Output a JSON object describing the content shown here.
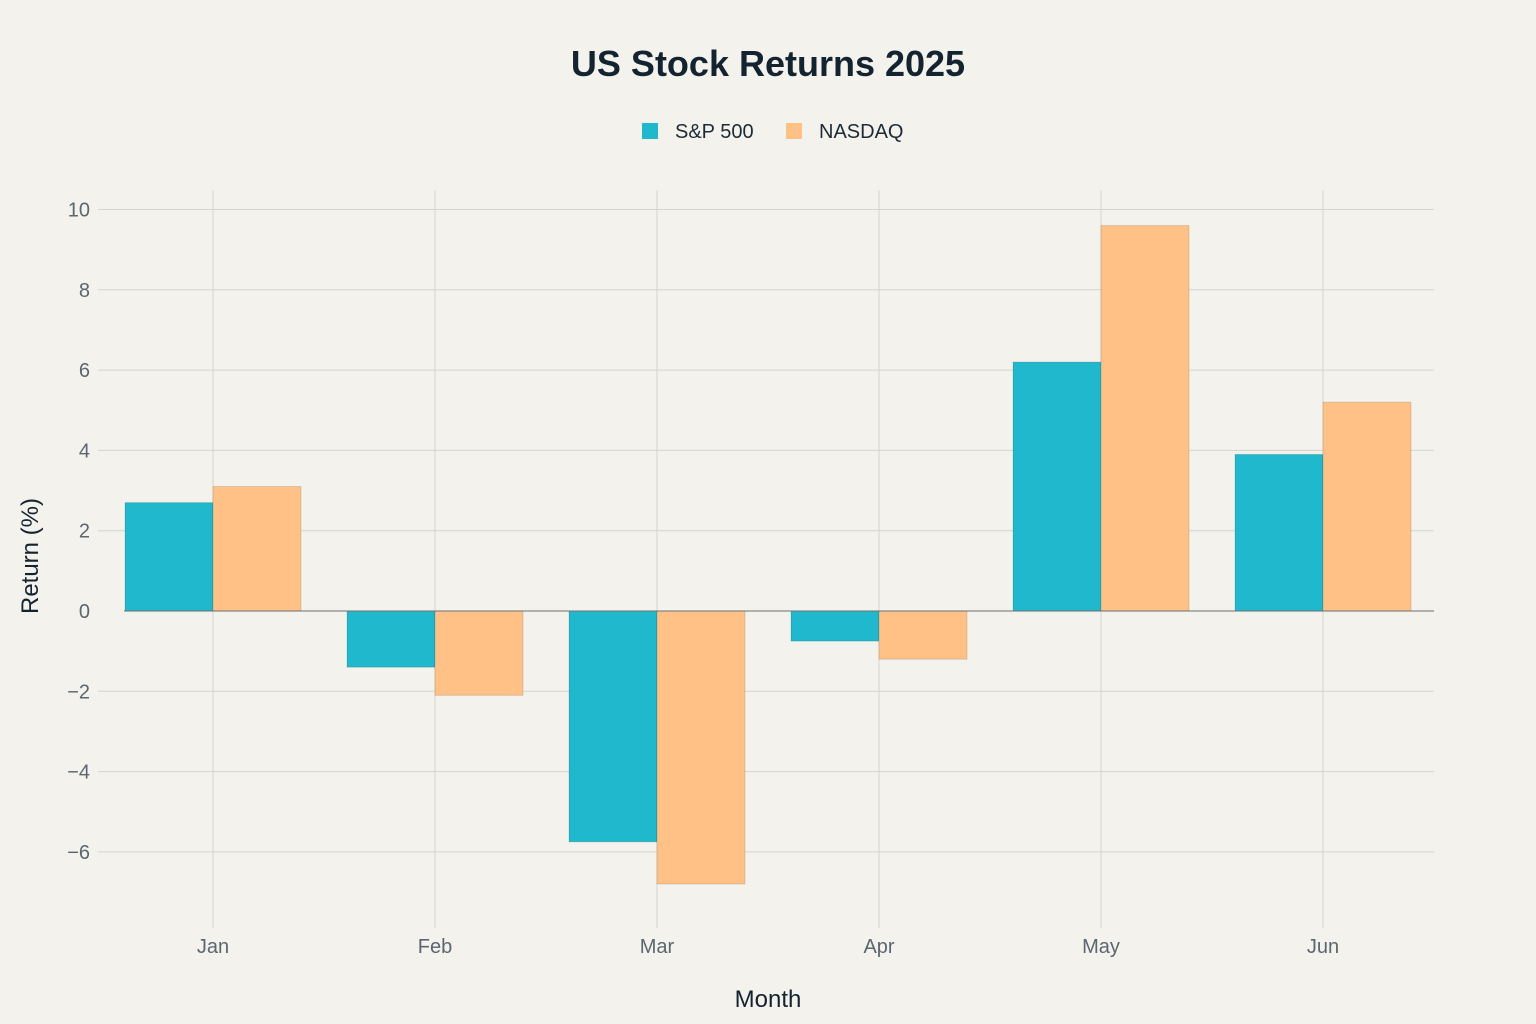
{
  "colors": {
    "background": "#f3f2ed",
    "sp500": "#1fb8cd",
    "nasdaq": "#ffc185",
    "grid": "#d4d4cf",
    "text": "#13232f"
  },
  "chart_data": {
    "type": "bar",
    "title": "US Stock Returns 2025",
    "xlabel": "Month",
    "ylabel": "Return (%)",
    "categories": [
      "Jan",
      "Feb",
      "Mar",
      "Apr",
      "May",
      "Jun"
    ],
    "series": [
      {
        "name": "S&P 500",
        "color": "#1fb8cd",
        "values": [
          2.7,
          -1.4,
          -5.75,
          -0.75,
          6.2,
          3.9
        ]
      },
      {
        "name": "NASDAQ",
        "color": "#ffc185",
        "values": [
          3.1,
          -2.1,
          -6.8,
          -1.2,
          9.6,
          5.2
        ]
      }
    ],
    "ylim": [
      -7.9,
      10.5
    ],
    "yticks": [
      10,
      8,
      6,
      4,
      2,
      0,
      -2,
      -4,
      -6
    ],
    "ytick_labels": [
      "10",
      "8",
      "6",
      "4",
      "2",
      "0",
      "−2",
      "−4",
      "−6"
    ],
    "grid": true,
    "legend_position": "top-center"
  }
}
